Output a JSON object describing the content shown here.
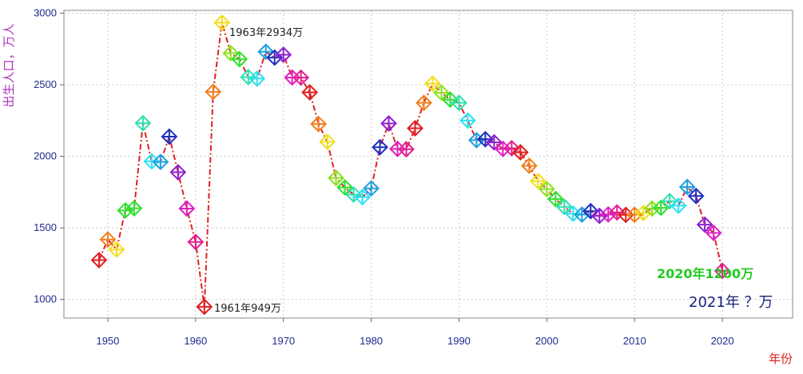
{
  "chart_data": {
    "type": "line",
    "ylabel": "出生人口，万人",
    "xlabel": "年份",
    "xlim": [
      1945,
      2028
    ],
    "ylim": [
      870,
      3020
    ],
    "x_ticks": [
      1950,
      1960,
      1970,
      1980,
      1990,
      2000,
      2010,
      2020
    ],
    "y_ticks": [
      1000,
      1500,
      2000,
      2500,
      3000
    ],
    "grid": true,
    "line_color": "#e02020",
    "series": [
      {
        "x": [
          1949,
          1950,
          1951,
          1952,
          1953,
          1954,
          1955,
          1956,
          1957,
          1958,
          1959,
          1960,
          1961,
          1962,
          1963,
          1964,
          1965,
          1966,
          1967,
          1968,
          1969,
          1970,
          1971,
          1972,
          1973,
          1974,
          1975,
          1976,
          1977,
          1978,
          1979,
          1980,
          1981,
          1982,
          1983,
          1984,
          1985,
          1986,
          1987,
          1988,
          1989,
          1990,
          1991,
          1992,
          1993,
          1994,
          1995,
          1996,
          1997,
          1998,
          1999,
          2000,
          2001,
          2002,
          2003,
          2004,
          2005,
          2006,
          2007,
          2008,
          2009,
          2010,
          2011,
          2012,
          2013,
          2014,
          2015,
          2016,
          2017,
          2018,
          2019,
          2020
        ],
        "y": [
          1275,
          1419,
          1349,
          1622,
          1637,
          2232,
          1965,
          1961,
          2138,
          1889,
          1635,
          1402,
          949,
          2451,
          2934,
          2721,
          2679,
          2554,
          2543,
          2731,
          2690,
          2710,
          2551,
          2550,
          2447,
          2226,
          2102,
          1849,
          1783,
          1733,
          1715,
          1776,
          2064,
          2230,
          2052,
          2050,
          2196,
          2374,
          2508,
          2445,
          2396,
          2374,
          2250,
          2113,
          2120,
          2098,
          2052,
          2057,
          2028,
          1934,
          1827,
          1771,
          1702,
          1647,
          1599,
          1593,
          1617,
          1584,
          1594,
          1608,
          1591,
          1592,
          1604,
          1635,
          1640,
          1687,
          1655,
          1786,
          1723,
          1523,
          1465,
          1200
        ],
        "colors": [
          "#e02020",
          "#f08020",
          "#f0e020",
          "#30e030",
          "#30e030",
          "#30e0b0",
          "#30e0f0",
          "#20a0e0",
          "#2030c0",
          "#9020d0",
          "#e020c0",
          "#e02090",
          "#e02020",
          "#f08020",
          "#f0e020",
          "#90e020",
          "#30e030",
          "#30e0b0",
          "#30e0f0",
          "#20a0e0",
          "#2030c0",
          "#9020d0",
          "#e020c0",
          "#e02090",
          "#e02020",
          "#f08020",
          "#f0e020",
          "#90e020",
          "#30e030",
          "#30e0b0",
          "#30e0f0",
          "#20a0e0",
          "#2030c0",
          "#9020d0",
          "#e020c0",
          "#e02090",
          "#e02020",
          "#f08020",
          "#f0e020",
          "#90e020",
          "#30e030",
          "#30e0b0",
          "#30e0f0",
          "#20a0e0",
          "#2030c0",
          "#9020d0",
          "#e020c0",
          "#e02090",
          "#e02020",
          "#f08020",
          "#f0e020",
          "#90e020",
          "#30e030",
          "#30e0b0",
          "#30e0f0",
          "#20a0e0",
          "#2030c0",
          "#9020d0",
          "#e020c0",
          "#e02090",
          "#e02020",
          "#f08020",
          "#f0e020",
          "#90e020",
          "#30e030",
          "#30e0b0",
          "#30e0f0",
          "#20a0e0",
          "#2030c0",
          "#9020d0",
          "#e020c0",
          "#e02090"
        ]
      }
    ],
    "annotations": [
      {
        "text": "1963年2934万",
        "x": 1963,
        "y": 2934,
        "color": "#222222"
      },
      {
        "text": "1961年949万",
        "x": 1961,
        "y": 949,
        "color": "#222222"
      },
      {
        "text": "2020年1200万",
        "x": 2020,
        "y": 1200,
        "color": "#22cc22"
      },
      {
        "text": "2021年 ？万",
        "x": 2021,
        "y": 1000,
        "color": "#1a2080"
      }
    ],
    "ylabel_color": "#b030c0",
    "xlabel_color": "#e02020",
    "tick_color": "#1f2a8c"
  }
}
